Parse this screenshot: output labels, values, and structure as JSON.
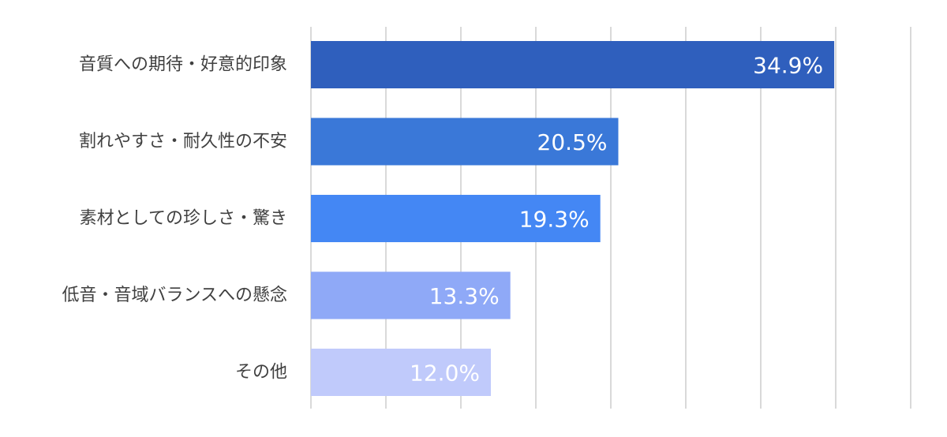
{
  "chart_data": {
    "type": "bar",
    "orientation": "horizontal",
    "categories": [
      "音質への期待・好意的印象",
      "割れやすさ・耐久性の不安",
      "素材としての珍しさ・驚き",
      "低音・音域バランスへの懸念",
      "その他"
    ],
    "values": [
      34.9,
      20.5,
      19.3,
      13.3,
      12.0
    ],
    "value_labels": [
      "34.9%",
      "20.5%",
      "19.3%",
      "13.3%",
      "12.0%"
    ],
    "bar_colors": [
      "#2f5fbd",
      "#3a78d8",
      "#4487f4",
      "#8fa9f7",
      "#c0cafb"
    ],
    "xlim": [
      0,
      40
    ],
    "grid": true,
    "legend": "none",
    "title": "",
    "xlabel": "",
    "ylabel": ""
  }
}
